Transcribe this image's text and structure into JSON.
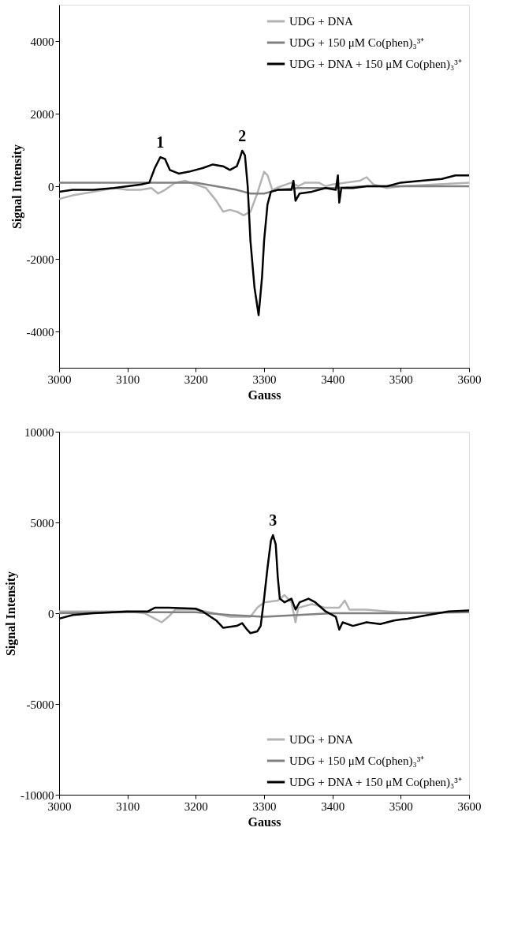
{
  "chart_data": [
    {
      "type": "line",
      "xlabel": "Gauss",
      "ylabel": "Signal Intensity",
      "xlim": [
        3000,
        3600
      ],
      "xticks": [
        3000,
        3100,
        3200,
        3300,
        3400,
        3500,
        3600
      ],
      "ylim": [
        -5000,
        5000
      ],
      "yticks": [
        -4000,
        -2000,
        0,
        2000,
        4000
      ],
      "grid": false,
      "legend": "top right",
      "annotations": [
        {
          "text": "1",
          "x": 3148,
          "y": 800
        },
        {
          "text": "2",
          "x": 3268,
          "y": 980
        }
      ],
      "series": [
        {
          "name": "UDG + DNA",
          "color": "#b3b3b3",
          "x": [
            3000,
            3020,
            3050,
            3080,
            3100,
            3120,
            3135,
            3145,
            3155,
            3170,
            3185,
            3200,
            3215,
            3230,
            3240,
            3250,
            3260,
            3270,
            3280,
            3290,
            3300,
            3305,
            3312,
            3325,
            3340,
            3350,
            3360,
            3380,
            3390,
            3400,
            3440,
            3450,
            3460,
            3480,
            3500,
            3550,
            3600
          ],
          "values": [
            -350,
            -250,
            -150,
            -50,
            -100,
            -100,
            -50,
            -200,
            -100,
            100,
            150,
            50,
            -50,
            -400,
            -700,
            -650,
            -700,
            -800,
            -700,
            -200,
            400,
            300,
            -100,
            0,
            100,
            0,
            100,
            100,
            0,
            50,
            150,
            250,
            50,
            -50,
            0,
            50,
            100
          ]
        },
        {
          "name": "UDG + 150 μM Co(phen)₃³⁺",
          "color": "#808080",
          "x": [
            3000,
            3050,
            3100,
            3150,
            3200,
            3230,
            3260,
            3280,
            3300,
            3320,
            3350,
            3400,
            3450,
            3500,
            3550,
            3600
          ],
          "values": [
            100,
            100,
            100,
            100,
            100,
            0,
            -100,
            -200,
            -200,
            -100,
            -50,
            -50,
            0,
            0,
            0,
            0
          ]
        },
        {
          "name": "UDG + DNA + 150 μM Co(phen)₃³⁺",
          "color": "#000000",
          "x": [
            3000,
            3020,
            3050,
            3080,
            3100,
            3120,
            3132,
            3140,
            3148,
            3155,
            3162,
            3175,
            3190,
            3210,
            3225,
            3240,
            3250,
            3260,
            3265,
            3268,
            3272,
            3276,
            3280,
            3286,
            3292,
            3297,
            3300,
            3305,
            3310,
            3320,
            3340,
            3343,
            3346,
            3352,
            3370,
            3390,
            3405,
            3408,
            3410,
            3413,
            3430,
            3450,
            3480,
            3500,
            3530,
            3560,
            3580,
            3600
          ],
          "values": [
            -150,
            -100,
            -100,
            -50,
            0,
            50,
            100,
            500,
            800,
            750,
            450,
            350,
            400,
            500,
            600,
            550,
            450,
            550,
            800,
            980,
            850,
            0,
            -1500,
            -2800,
            -3550,
            -2500,
            -1500,
            -500,
            -150,
            -100,
            -100,
            150,
            -400,
            -200,
            -150,
            -50,
            -100,
            300,
            -450,
            -50,
            -50,
            0,
            0,
            100,
            150,
            200,
            300,
            300
          ]
        }
      ]
    },
    {
      "type": "line",
      "xlabel": "Gauss",
      "ylabel": "Signal Intensity",
      "xlim": [
        3000,
        3600
      ],
      "xticks": [
        3000,
        3100,
        3200,
        3300,
        3400,
        3500,
        3600
      ],
      "ylim": [
        -10000,
        10000
      ],
      "yticks": [
        -10000,
        -5000,
        0,
        5000,
        10000
      ],
      "grid": false,
      "legend": "bottom right",
      "annotations": [
        {
          "text": "3",
          "x": 3313,
          "y": 4300
        }
      ],
      "series": [
        {
          "name": "UDG + DNA",
          "color": "#b3b3b3",
          "x": [
            3000,
            3050,
            3100,
            3125,
            3140,
            3150,
            3160,
            3170,
            3200,
            3220,
            3250,
            3280,
            3290,
            3300,
            3320,
            3330,
            3340,
            3346,
            3350,
            3370,
            3390,
            3410,
            3418,
            3425,
            3450,
            3480,
            3500,
            3550
          ],
          "values": [
            100,
            100,
            100,
            0,
            -300,
            -500,
            -200,
            200,
            200,
            50,
            -200,
            -200,
            300,
            600,
            700,
            1000,
            600,
            -500,
            300,
            500,
            300,
            300,
            700,
            200,
            200,
            100,
            50,
            0
          ]
        },
        {
          "name": "UDG + 150 μM Co(phen)₃³⁺",
          "color": "#808080",
          "x": [
            3000,
            3100,
            3200,
            3250,
            3300,
            3350,
            3400,
            3500,
            3600
          ],
          "values": [
            0,
            50,
            50,
            -100,
            -200,
            -100,
            0,
            0,
            50
          ]
        },
        {
          "name": "UDG + DNA + 150 μM Co(phen)₃³⁺",
          "color": "#000000",
          "x": [
            3000,
            3020,
            3050,
            3100,
            3130,
            3140,
            3160,
            3200,
            3210,
            3230,
            3240,
            3260,
            3268,
            3275,
            3280,
            3290,
            3295,
            3300,
            3305,
            3310,
            3313,
            3317,
            3320,
            3323,
            3330,
            3340,
            3346,
            3352,
            3365,
            3375,
            3390,
            3405,
            3410,
            3415,
            3430,
            3450,
            3470,
            3490,
            3510,
            3540,
            3570,
            3600
          ],
          "values": [
            -300,
            -100,
            0,
            100,
            100,
            300,
            300,
            250,
            100,
            -400,
            -800,
            -700,
            -550,
            -900,
            -1100,
            -1000,
            -700,
            800,
            2500,
            4000,
            4300,
            3800,
            2000,
            800,
            600,
            800,
            200,
            600,
            800,
            600,
            100,
            -200,
            -900,
            -500,
            -700,
            -500,
            -600,
            -400,
            -300,
            -100,
            100,
            150
          ]
        }
      ]
    }
  ]
}
